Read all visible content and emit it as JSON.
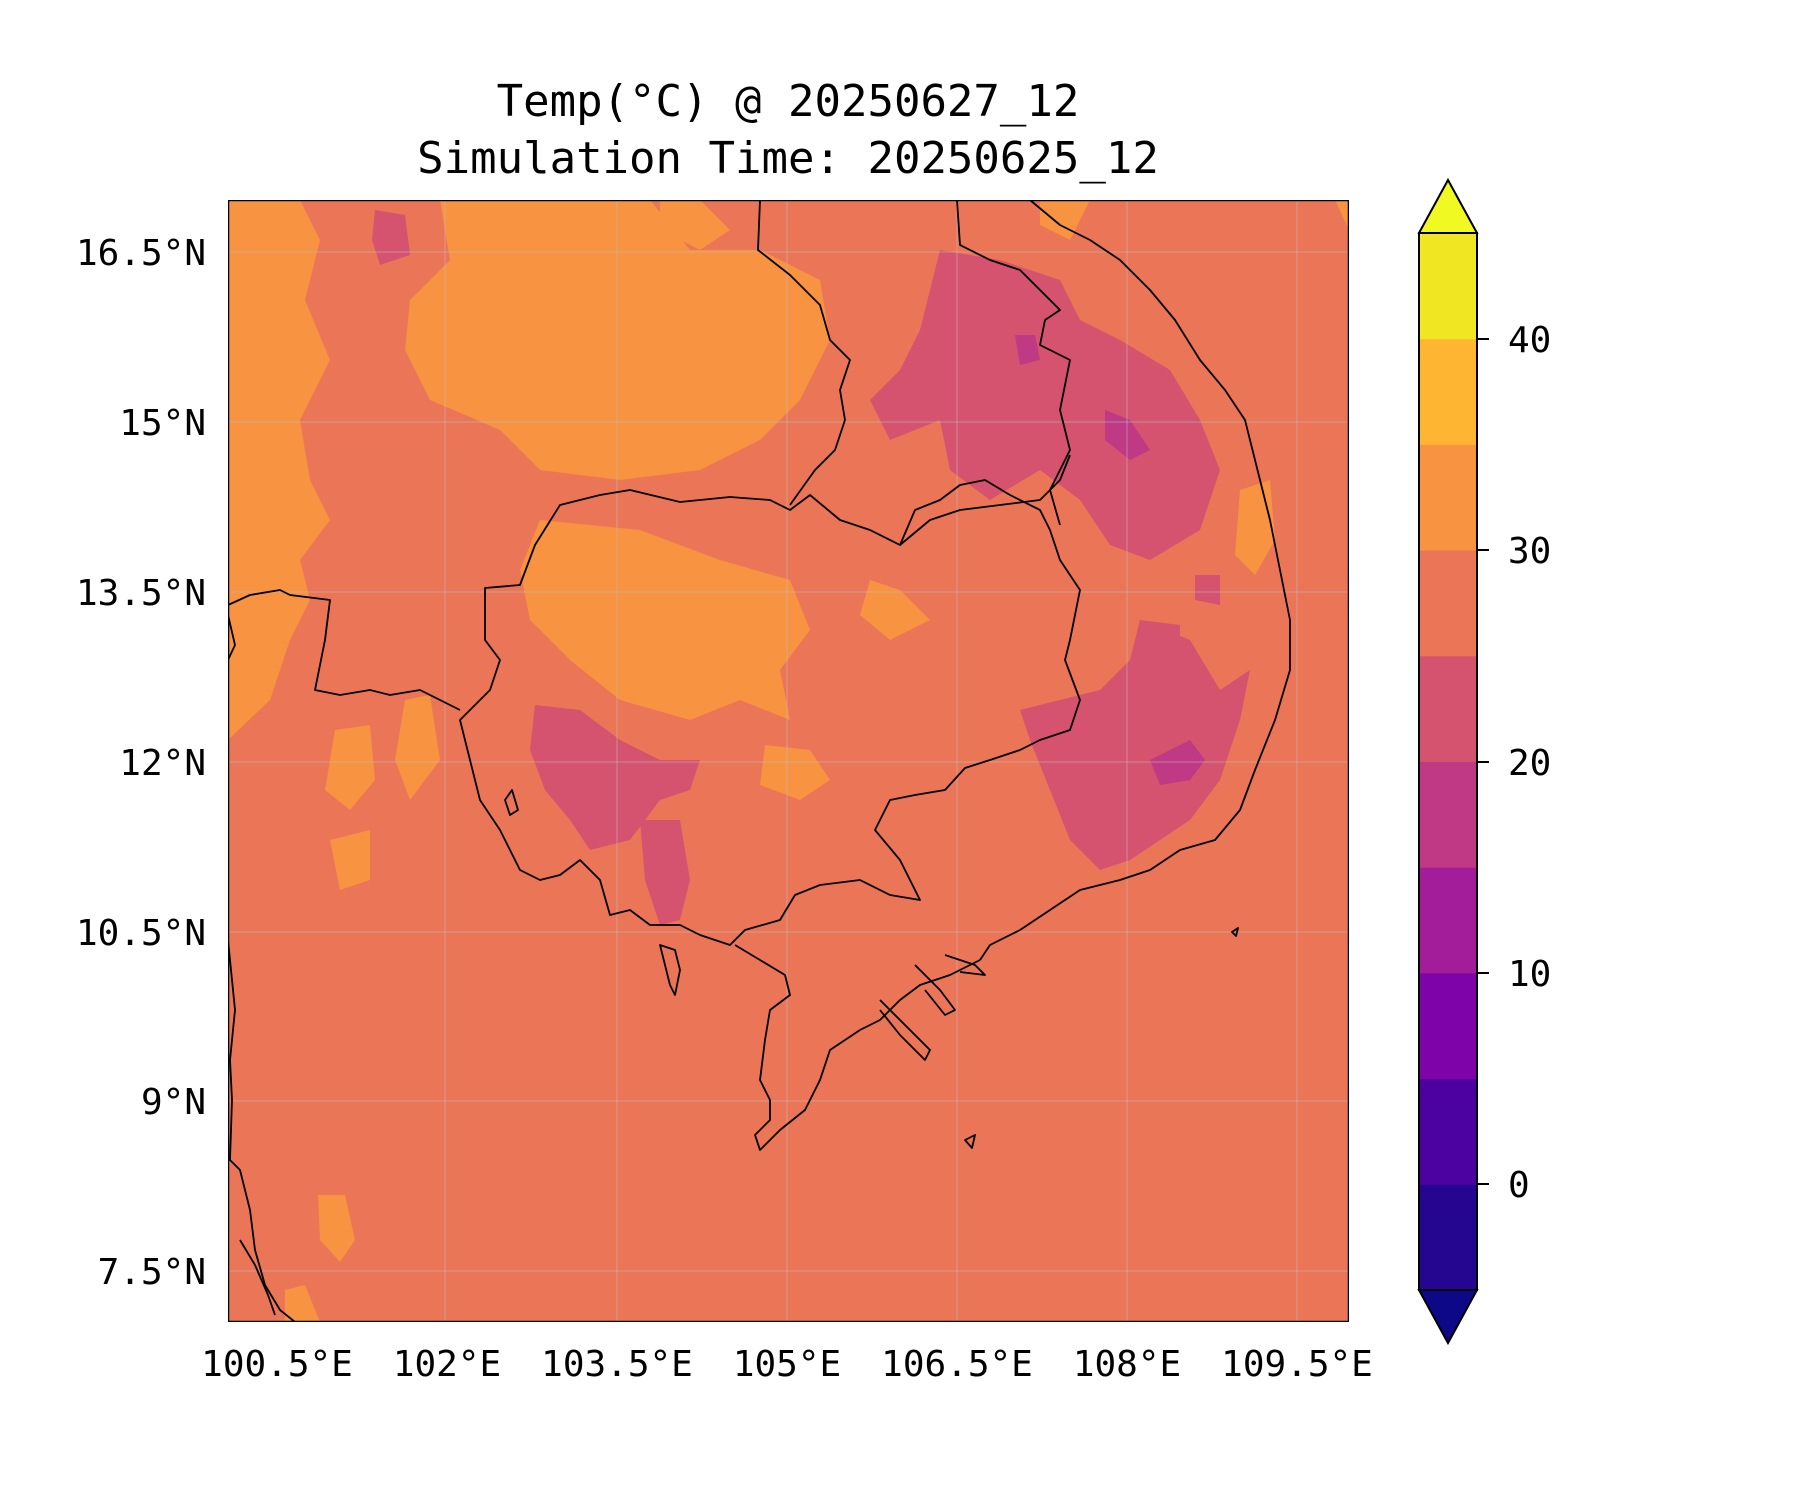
{
  "title": {
    "line1": "Temp(°C) @ 20250627_12",
    "line2": "Simulation Time: 20250625_12"
  },
  "map": {
    "lat_ticks": [
      "16.5°N",
      "15°N",
      "13.5°N",
      "12°N",
      "10.5°N",
      "9°N",
      "7.5°N"
    ],
    "lon_ticks": [
      "100.5°E",
      "102°E",
      "103.5°E",
      "105°E",
      "106.5°E",
      "108°E",
      "109.5°E"
    ],
    "background_color": "#eb7557",
    "grid": true
  },
  "colorbar": {
    "tick_labels": [
      "40",
      "30",
      "20",
      "10",
      "0"
    ],
    "extend": "both",
    "colors": [
      "#0d0887",
      "#240691",
      "#4c02a1",
      "#7e03a8",
      "#a31d9a",
      "#bf3984",
      "#d5536f",
      "#eb7557",
      "#f79341",
      "#feb531",
      "#f0e621",
      "#f0f921"
    ]
  }
}
